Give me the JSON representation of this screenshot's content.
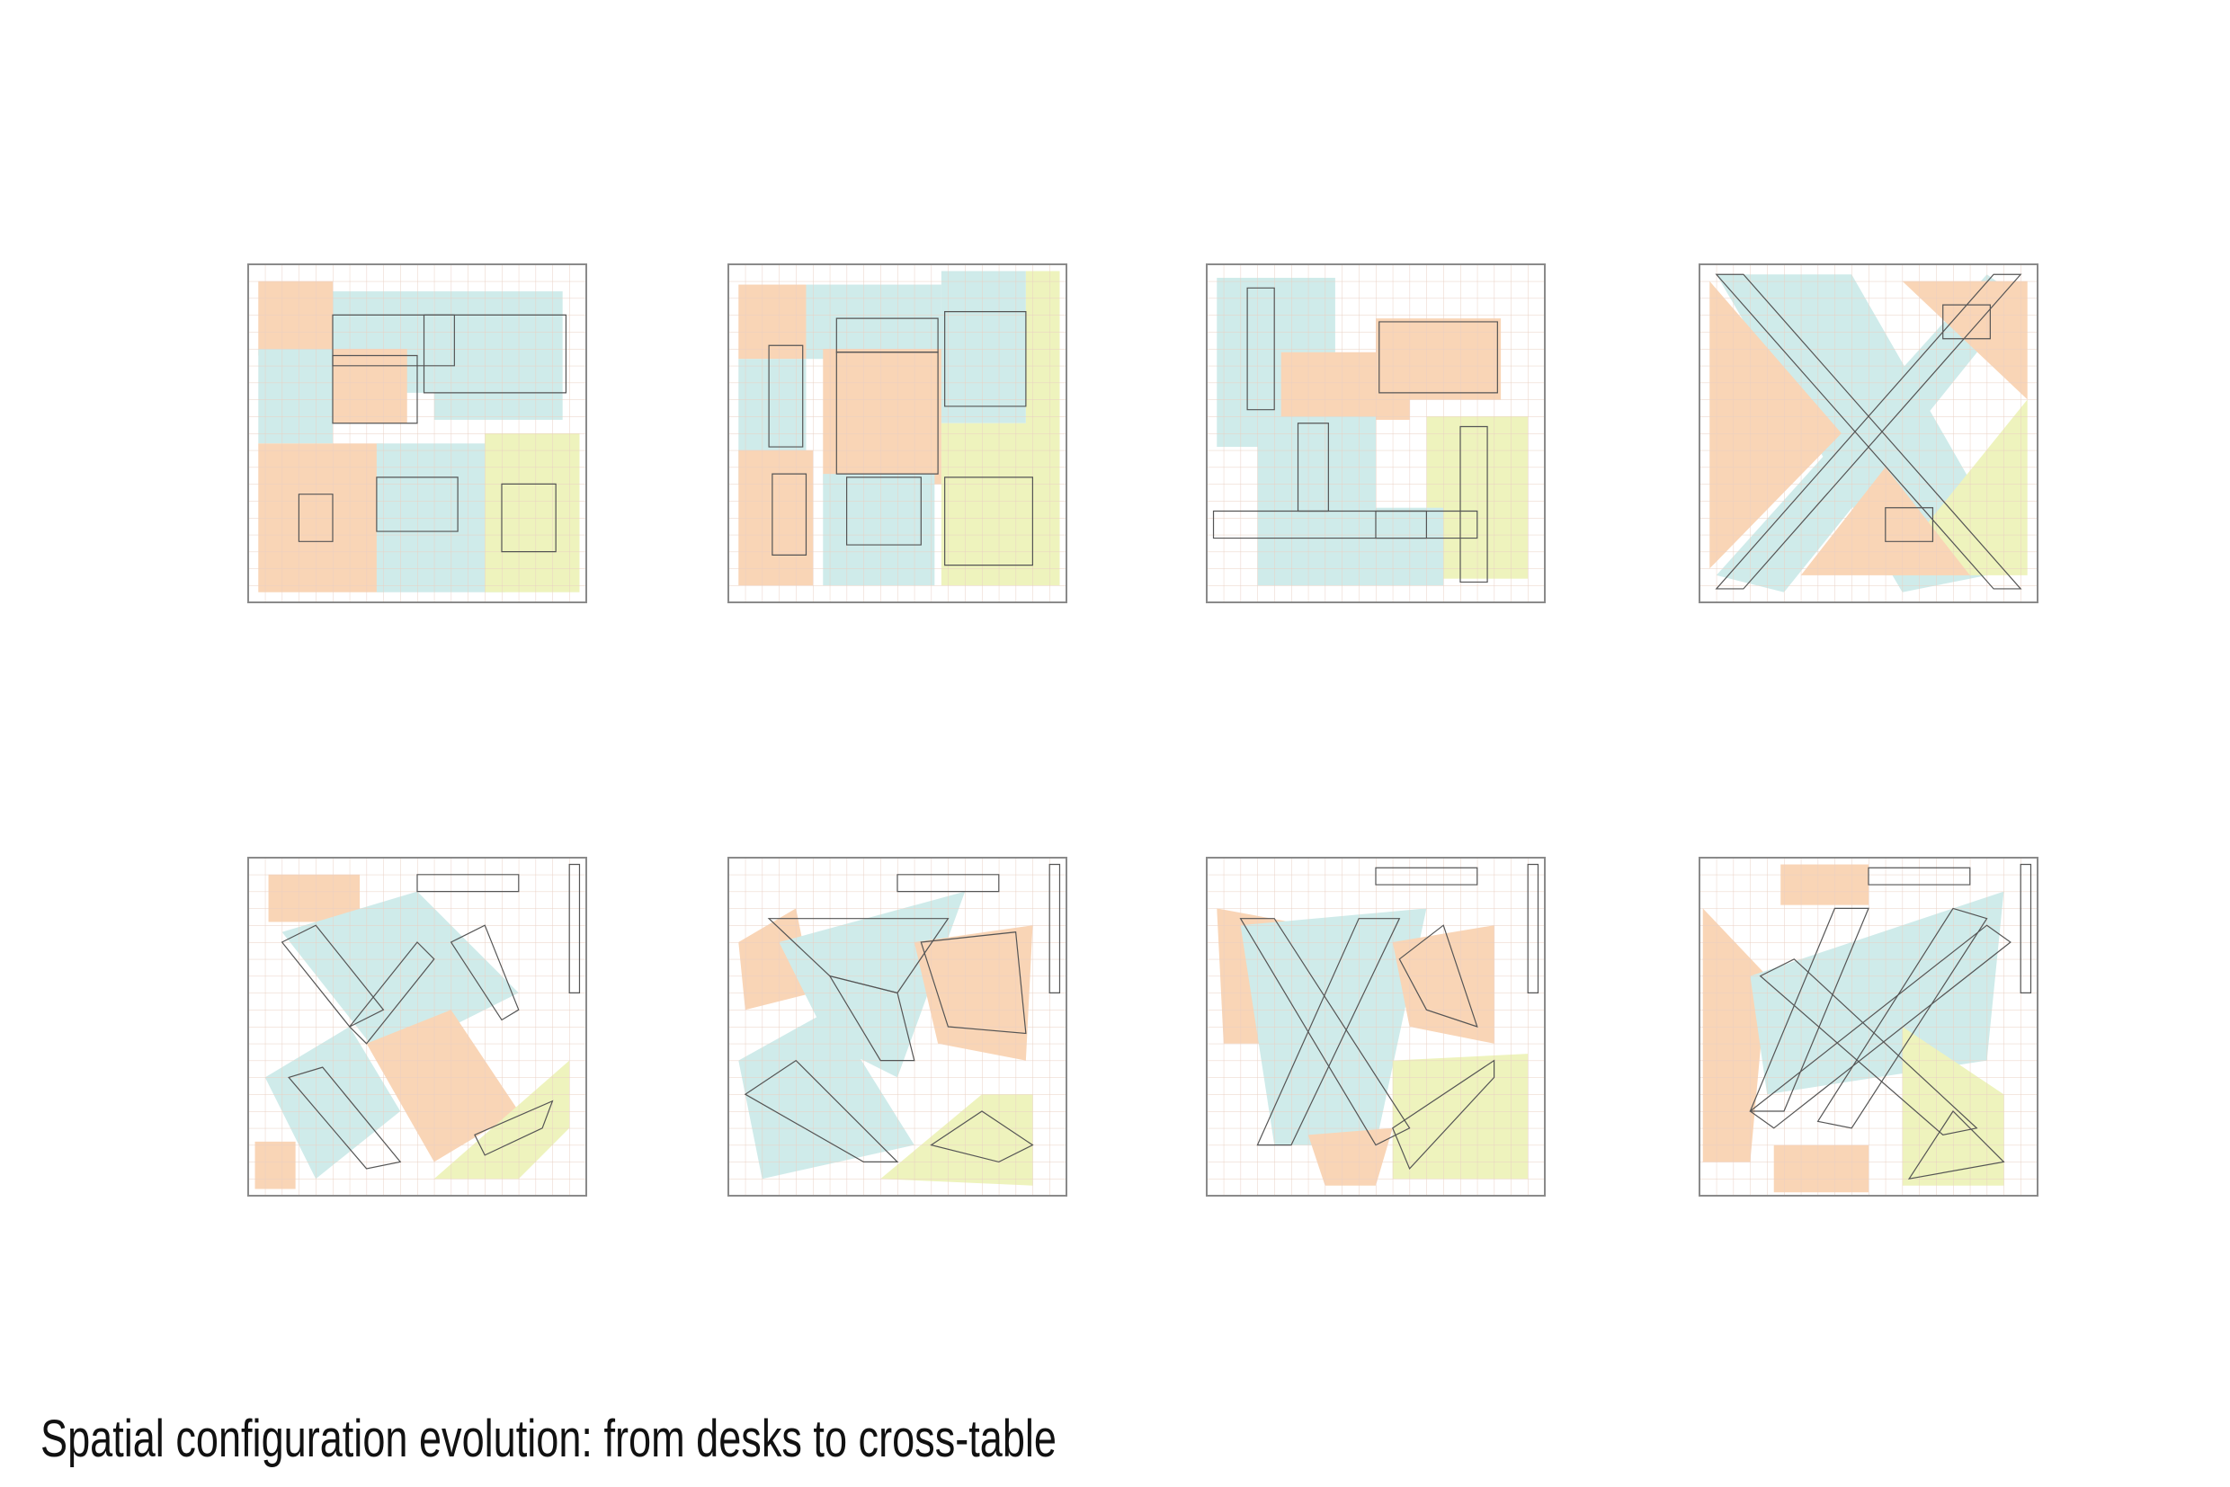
{
  "caption": "Spatial configuration evolution: from desks to cross-table"
}
